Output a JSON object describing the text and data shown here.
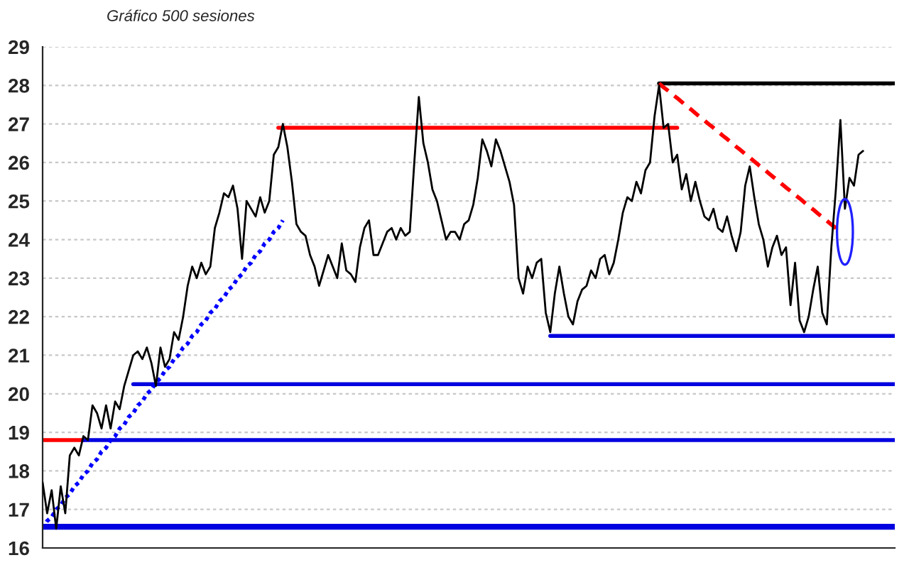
{
  "chart_data": {
    "type": "line",
    "title": "Gráfico 500 sesiones",
    "categories": [
      null,
      null,
      null,
      null,
      null,
      null,
      null,
      null,
      null,
      null,
      null,
      null,
      null,
      null,
      null,
      null,
      null,
      null,
      null,
      null,
      null,
      null,
      null,
      null,
      null,
      null,
      null,
      null,
      null,
      null,
      null,
      null,
      null,
      null,
      null,
      null,
      null,
      null,
      null,
      null,
      null,
      null,
      null,
      null,
      null,
      null,
      null,
      null,
      null,
      null,
      null,
      null,
      null,
      null,
      null,
      null,
      null,
      null,
      null,
      null,
      null,
      null,
      null,
      null,
      null,
      null,
      null,
      null,
      null,
      null,
      null,
      null,
      null,
      null,
      null,
      null,
      null,
      null,
      null,
      null,
      null,
      null,
      null,
      null,
      null,
      null,
      null,
      null,
      null,
      null,
      null,
      null,
      null,
      null,
      null,
      null,
      null,
      null,
      null,
      null,
      null,
      null,
      null,
      null,
      null,
      null,
      null,
      null,
      null,
      null,
      null,
      null,
      null,
      null,
      null,
      null,
      null,
      null,
      null,
      null,
      null,
      null,
      null,
      null,
      null,
      null,
      null,
      null,
      null,
      null,
      null,
      null,
      null,
      null,
      null,
      null,
      null,
      null,
      null,
      null,
      null,
      null,
      null,
      null,
      null,
      null,
      null,
      null,
      null,
      null,
      null,
      null,
      null,
      null,
      null,
      null,
      null,
      null,
      null,
      null,
      null,
      null,
      null,
      null,
      null,
      null,
      null,
      null,
      null,
      null,
      null,
      null,
      null,
      null,
      null,
      null,
      null,
      null,
      null,
      null,
      null,
      null,
      null,
      null,
      null,
      null,
      null,
      null,
      null
    ],
    "series": [
      {
        "color": "#000000",
        "values": [
          17.7,
          16.9,
          17.5,
          16.5,
          17.6,
          16.9,
          18.4,
          18.6,
          18.4,
          18.9,
          18.8,
          19.7,
          19.5,
          19.1,
          19.7,
          19.1,
          19.8,
          19.6,
          20.2,
          20.6,
          21.0,
          21.1,
          20.9,
          21.2,
          20.8,
          20.2,
          21.2,
          20.7,
          20.9,
          21.6,
          21.4,
          22.0,
          22.8,
          23.3,
          23.0,
          23.4,
          23.1,
          23.3,
          24.3,
          24.7,
          25.2,
          25.1,
          25.4,
          24.8,
          23.5,
          25.0,
          24.8,
          24.6,
          25.1,
          24.7,
          25.0,
          26.2,
          26.4,
          27.0,
          26.4,
          25.5,
          24.4,
          24.2,
          24.1,
          23.6,
          23.3,
          22.8,
          23.2,
          23.6,
          23.3,
          23.0,
          23.9,
          23.2,
          23.1,
          22.9,
          23.8,
          24.3,
          24.5,
          23.6,
          23.6,
          23.9,
          24.2,
          24.3,
          24.0,
          24.3,
          24.1,
          24.2,
          26.0,
          27.7,
          26.5,
          26.0,
          25.3,
          25.0,
          24.5,
          24.0,
          24.2,
          24.2,
          24.0,
          24.4,
          24.5,
          24.9,
          25.6,
          26.6,
          26.3,
          25.9,
          26.6,
          26.3,
          25.9,
          25.5,
          24.9,
          23.0,
          22.6,
          23.3,
          23.0,
          23.4,
          23.5,
          22.1,
          21.6,
          22.6,
          23.3,
          22.6,
          22.0,
          21.8,
          22.4,
          22.7,
          22.8,
          23.2,
          23.0,
          23.5,
          23.6,
          23.1,
          23.4,
          24.0,
          24.7,
          25.1,
          25.0,
          25.5,
          25.2,
          25.8,
          26.0,
          27.2,
          28.0,
          26.9,
          27.0,
          26.0,
          26.2,
          25.3,
          25.7,
          25.0,
          25.5,
          25.0,
          24.6,
          24.5,
          24.8,
          24.3,
          24.2,
          24.6,
          24.1,
          23.7,
          24.2,
          25.4,
          25.9,
          25.1,
          24.4,
          24.0,
          23.3,
          23.8,
          24.1,
          23.6,
          23.8,
          22.3,
          23.4,
          21.9,
          21.6,
          22.0,
          22.7,
          23.3,
          22.1,
          21.8,
          23.8,
          25.3,
          27.1,
          24.8,
          25.6,
          25.4,
          26.2,
          26.3,
          null,
          null,
          null,
          null,
          null,
          null,
          null
        ]
      },
      {
        "color": "#ff0000",
        "line_style": "solid",
        "values": [
          null,
          null,
          null,
          null,
          null,
          null,
          null,
          null,
          null,
          null,
          null,
          null,
          null,
          null,
          null,
          null,
          null,
          null,
          null,
          null,
          null,
          null,
          null,
          null,
          null,
          null,
          null,
          null,
          null,
          null,
          null,
          null,
          null,
          null,
          null,
          null,
          null,
          null,
          null,
          null,
          null,
          null,
          null,
          null,
          null,
          null,
          null,
          null,
          null,
          null,
          null,
          null,
          26.9,
          26.9,
          26.9,
          26.9,
          26.9,
          26.9,
          26.9,
          26.9,
          26.9,
          26.9,
          26.9,
          26.9,
          26.9,
          26.9,
          26.9,
          26.9,
          26.9,
          26.9,
          26.9,
          26.9,
          26.9,
          26.9,
          26.9,
          26.9,
          26.9,
          26.9,
          26.9,
          26.9,
          26.9,
          26.9,
          26.9,
          26.9,
          26.9,
          26.9,
          26.9,
          26.9,
          26.9,
          26.9,
          26.9,
          26.9,
          26.9,
          26.9,
          26.9,
          26.9,
          26.9,
          26.9,
          26.9,
          26.9,
          26.9,
          26.9,
          26.9,
          26.9,
          26.9,
          26.9,
          26.9,
          26.9,
          26.9,
          26.9,
          26.9,
          26.9,
          26.9,
          26.9,
          26.9,
          26.9,
          26.9,
          26.9,
          26.9,
          26.9,
          26.9,
          26.9,
          26.9,
          26.9,
          26.9,
          26.9,
          26.9,
          26.9,
          26.9,
          26.9,
          26.9,
          26.9,
          26.9,
          26.9,
          26.9,
          26.9,
          26.9,
          26.9,
          26.9,
          26.9,
          26.9,
          null,
          null,
          null,
          null,
          null,
          null,
          null,
          null,
          null,
          null,
          null,
          null,
          null,
          null,
          null,
          null,
          null,
          null,
          null,
          null,
          null,
          null,
          null,
          null,
          null,
          null,
          null,
          null,
          null,
          null,
          null,
          null,
          null,
          null,
          null,
          null,
          null,
          null,
          null,
          null,
          null,
          null,
          null,
          null,
          null,
          null,
          null,
          null
        ]
      },
      {
        "color": "#000000",
        "line_style": "solid",
        "values": [
          null,
          null,
          null,
          null,
          null,
          null,
          null,
          null,
          null,
          null,
          null,
          null,
          null,
          null,
          null,
          null,
          null,
          null,
          null,
          null,
          null,
          null,
          null,
          null,
          null,
          null,
          null,
          null,
          null,
          null,
          null,
          null,
          null,
          null,
          null,
          null,
          null,
          null,
          null,
          null,
          null,
          null,
          null,
          null,
          null,
          null,
          null,
          null,
          null,
          null,
          null,
          null,
          null,
          null,
          null,
          null,
          null,
          null,
          null,
          null,
          null,
          null,
          null,
          null,
          null,
          null,
          null,
          null,
          null,
          null,
          null,
          null,
          null,
          null,
          null,
          null,
          null,
          null,
          null,
          null,
          null,
          null,
          null,
          null,
          null,
          null,
          null,
          null,
          null,
          null,
          null,
          null,
          null,
          null,
          null,
          null,
          null,
          null,
          null,
          null,
          null,
          null,
          null,
          null,
          null,
          null,
          null,
          null,
          null,
          null,
          null,
          null,
          null,
          null,
          null,
          null,
          null,
          null,
          null,
          null,
          null,
          null,
          null,
          null,
          null,
          null,
          null,
          null,
          null,
          null,
          null,
          null,
          null,
          null,
          null,
          null,
          28.05,
          28.05,
          28.05,
          28.05,
          28.05,
          28.05,
          28.05,
          28.05,
          28.05,
          28.05,
          28.05,
          28.05,
          28.05,
          28.05,
          28.05,
          28.05,
          28.05,
          28.05,
          28.05,
          28.05,
          28.05,
          28.05,
          28.05,
          28.05,
          28.05,
          28.05,
          28.05,
          28.05,
          28.05,
          28.05,
          28.05,
          28.05,
          28.05,
          28.05,
          28.05,
          28.05,
          28.05,
          28.05,
          28.05,
          28.05,
          28.05,
          28.05,
          28.05,
          28.05,
          28.05,
          28.05,
          28.05,
          28.05,
          28.05,
          28.05,
          28.05,
          28.05,
          28.05
        ]
      },
      {
        "color": "#0000e0",
        "line_style": "solid",
        "values": [
          null,
          null,
          null,
          null,
          null,
          null,
          null,
          null,
          null,
          null,
          null,
          null,
          null,
          null,
          null,
          null,
          null,
          null,
          null,
          null,
          null,
          null,
          null,
          null,
          null,
          null,
          null,
          null,
          null,
          null,
          null,
          null,
          null,
          null,
          null,
          null,
          null,
          null,
          null,
          null,
          null,
          null,
          null,
          null,
          null,
          null,
          null,
          null,
          null,
          null,
          null,
          null,
          null,
          null,
          null,
          null,
          null,
          null,
          null,
          null,
          null,
          null,
          null,
          null,
          null,
          null,
          null,
          null,
          null,
          null,
          null,
          null,
          null,
          null,
          null,
          null,
          null,
          null,
          null,
          null,
          null,
          null,
          null,
          null,
          null,
          null,
          null,
          null,
          null,
          null,
          null,
          null,
          null,
          null,
          null,
          null,
          null,
          null,
          null,
          null,
          null,
          null,
          null,
          null,
          null,
          null,
          null,
          null,
          null,
          null,
          null,
          null,
          21.5,
          21.5,
          21.5,
          21.5,
          21.5,
          21.5,
          21.5,
          21.5,
          21.5,
          21.5,
          21.5,
          21.5,
          21.5,
          21.5,
          21.5,
          21.5,
          21.5,
          21.5,
          21.5,
          21.5,
          21.5,
          21.5,
          21.5,
          21.5,
          21.5,
          21.5,
          21.5,
          21.5,
          21.5,
          21.5,
          21.5,
          21.5,
          21.5,
          21.5,
          21.5,
          21.5,
          21.5,
          21.5,
          21.5,
          21.5,
          21.5,
          21.5,
          21.5,
          21.5,
          21.5,
          21.5,
          21.5,
          21.5,
          21.5,
          21.5,
          21.5,
          21.5,
          21.5,
          21.5,
          21.5,
          21.5,
          21.5,
          21.5,
          21.5,
          21.5,
          21.5,
          21.5,
          21.5,
          21.5,
          21.5,
          21.5,
          21.5,
          21.5,
          21.5,
          21.5,
          21.5,
          21.5,
          21.5,
          21.5,
          21.5,
          21.5,
          21.5
        ]
      },
      {
        "color": "#0000e0",
        "line_style": "solid",
        "values": [
          null,
          null,
          null,
          null,
          null,
          null,
          null,
          null,
          null,
          null,
          null,
          null,
          null,
          null,
          null,
          null,
          null,
          null,
          null,
          null,
          20.25,
          20.25,
          20.25,
          20.25,
          20.25,
          20.25,
          20.25,
          20.25,
          20.25,
          20.25,
          20.25,
          20.25,
          20.25,
          20.25,
          20.25,
          20.25,
          20.25,
          20.25,
          20.25,
          20.25,
          20.25,
          20.25,
          20.25,
          20.25,
          20.25,
          20.25,
          20.25,
          20.25,
          20.25,
          20.25,
          20.25,
          20.25,
          20.25,
          20.25,
          20.25,
          20.25,
          20.25,
          20.25,
          20.25,
          20.25,
          20.25,
          20.25,
          20.25,
          20.25,
          20.25,
          20.25,
          20.25,
          20.25,
          20.25,
          20.25,
          20.25,
          20.25,
          20.25,
          20.25,
          20.25,
          20.25,
          20.25,
          20.25,
          20.25,
          20.25,
          20.25,
          20.25,
          20.25,
          20.25,
          20.25,
          20.25,
          20.25,
          20.25,
          20.25,
          20.25,
          20.25,
          20.25,
          20.25,
          20.25,
          20.25,
          20.25,
          20.25,
          20.25,
          20.25,
          20.25,
          20.25,
          20.25,
          20.25,
          20.25,
          20.25,
          20.25,
          20.25,
          20.25,
          20.25,
          20.25,
          20.25,
          20.25,
          20.25,
          20.25,
          20.25,
          20.25,
          20.25,
          20.25,
          20.25,
          20.25,
          20.25,
          20.25,
          20.25,
          20.25,
          20.25,
          20.25,
          20.25,
          20.25,
          20.25,
          20.25,
          20.25,
          20.25,
          20.25,
          20.25,
          20.25,
          20.25,
          20.25,
          20.25,
          20.25,
          20.25,
          20.25,
          20.25,
          20.25,
          20.25,
          20.25,
          20.25,
          20.25,
          20.25,
          20.25,
          20.25,
          20.25,
          20.25,
          20.25,
          20.25,
          20.25,
          20.25,
          20.25,
          20.25,
          20.25,
          20.25,
          20.25,
          20.25,
          20.25,
          20.25,
          20.25,
          20.25,
          20.25,
          20.25,
          20.25,
          20.25,
          20.25,
          20.25,
          20.25,
          20.25,
          20.25,
          20.25,
          20.25,
          20.25,
          20.25,
          20.25,
          20.25,
          20.25,
          20.25,
          20.25,
          20.25,
          20.25,
          20.25,
          20.25,
          20.25
        ]
      },
      {
        "color": "#ff0000",
        "line_style": "solid",
        "values": [
          18.8,
          18.8,
          18.8,
          18.8,
          18.8,
          18.8,
          18.8,
          18.8,
          18.8,
          18.8,
          null,
          null,
          null,
          null,
          null,
          null,
          null,
          null,
          null,
          null,
          null,
          null,
          null,
          null,
          null,
          null,
          null,
          null,
          null,
          null,
          null,
          null,
          null,
          null,
          null,
          null,
          null,
          null,
          null,
          null,
          null,
          null,
          null,
          null,
          null,
          null,
          null,
          null,
          null,
          null,
          null,
          null,
          null,
          null,
          null,
          null,
          null,
          null,
          null,
          null,
          null,
          null,
          null,
          null,
          null,
          null,
          null,
          null,
          null,
          null,
          null,
          null,
          null,
          null,
          null,
          null,
          null,
          null,
          null,
          null,
          null,
          null,
          null,
          null,
          null,
          null,
          null,
          null,
          null,
          null,
          null,
          null,
          null,
          null,
          null,
          null,
          null,
          null,
          null,
          null,
          null,
          null,
          null,
          null,
          null,
          null,
          null,
          null,
          null,
          null,
          null,
          null,
          null,
          null,
          null,
          null,
          null,
          null,
          null,
          null,
          null,
          null,
          null,
          null,
          null,
          null,
          null,
          null,
          null,
          null,
          null,
          null,
          null,
          null,
          null,
          null,
          null,
          null,
          null,
          null,
          null,
          null,
          null,
          null,
          null,
          null,
          null,
          null,
          null,
          null,
          null,
          null,
          null,
          null,
          null,
          null,
          null,
          null,
          null,
          null,
          null,
          null,
          null,
          null,
          null,
          null,
          null,
          null,
          null,
          null,
          null,
          null,
          null,
          null,
          null,
          null,
          null,
          null,
          null,
          null,
          null,
          null,
          null,
          null,
          null,
          null,
          null,
          null,
          null
        ]
      },
      {
        "color": "#0000e0",
        "line_style": "solid",
        "values": [
          null,
          null,
          null,
          null,
          null,
          null,
          null,
          null,
          null,
          18.8,
          18.8,
          18.8,
          18.8,
          18.8,
          18.8,
          18.8,
          18.8,
          18.8,
          18.8,
          18.8,
          18.8,
          18.8,
          18.8,
          18.8,
          18.8,
          18.8,
          18.8,
          18.8,
          18.8,
          18.8,
          18.8,
          18.8,
          18.8,
          18.8,
          18.8,
          18.8,
          18.8,
          18.8,
          18.8,
          18.8,
          18.8,
          18.8,
          18.8,
          18.8,
          18.8,
          18.8,
          18.8,
          18.8,
          18.8,
          18.8,
          18.8,
          18.8,
          18.8,
          18.8,
          18.8,
          18.8,
          18.8,
          18.8,
          18.8,
          18.8,
          18.8,
          18.8,
          18.8,
          18.8,
          18.8,
          18.8,
          18.8,
          18.8,
          18.8,
          18.8,
          18.8,
          18.8,
          18.8,
          18.8,
          18.8,
          18.8,
          18.8,
          18.8,
          18.8,
          18.8,
          18.8,
          18.8,
          18.8,
          18.8,
          18.8,
          18.8,
          18.8,
          18.8,
          18.8,
          18.8,
          18.8,
          18.8,
          18.8,
          18.8,
          18.8,
          18.8,
          18.8,
          18.8,
          18.8,
          18.8,
          18.8,
          18.8,
          18.8,
          18.8,
          18.8,
          18.8,
          18.8,
          18.8,
          18.8,
          18.8,
          18.8,
          18.8,
          18.8,
          18.8,
          18.8,
          18.8,
          18.8,
          18.8,
          18.8,
          18.8,
          18.8,
          18.8,
          18.8,
          18.8,
          18.8,
          18.8,
          18.8,
          18.8,
          18.8,
          18.8,
          18.8,
          18.8,
          18.8,
          18.8,
          18.8,
          18.8,
          18.8,
          18.8,
          18.8,
          18.8,
          18.8,
          18.8,
          18.8,
          18.8,
          18.8,
          18.8,
          18.8,
          18.8,
          18.8,
          18.8,
          18.8,
          18.8,
          18.8,
          18.8,
          18.8,
          18.8,
          18.8,
          18.8,
          18.8,
          18.8,
          18.8,
          18.8,
          18.8,
          18.8,
          18.8,
          18.8,
          18.8,
          18.8,
          18.8,
          18.8,
          18.8,
          18.8,
          18.8,
          18.8,
          18.8,
          18.8,
          18.8,
          18.8,
          18.8,
          18.8,
          18.8,
          18.8,
          18.8,
          18.8,
          18.8,
          18.8,
          18.8,
          18.8,
          18.8
        ]
      },
      {
        "color": "#0000ff",
        "line_style": "dotted",
        "values": [
          16.5,
          16.7,
          16.8,
          17.0,
          17.1,
          17.3,
          17.4,
          17.6,
          17.7,
          17.9,
          18.0,
          18.2,
          18.3,
          18.5,
          18.6,
          18.8,
          18.9,
          19.1,
          19.2,
          19.4,
          19.5,
          19.7,
          19.8,
          20.0,
          20.1,
          20.3,
          20.4,
          20.6,
          20.7,
          20.9,
          21.0,
          21.2,
          21.3,
          21.5,
          21.6,
          21.8,
          21.9,
          22.1,
          22.2,
          22.4,
          22.5,
          22.7,
          22.8,
          23.0,
          23.1,
          23.3,
          23.4,
          23.6,
          23.7,
          23.9,
          24.0,
          24.2,
          24.3,
          24.5,
          null,
          null,
          null,
          null,
          null,
          null,
          null,
          null,
          null,
          null,
          null,
          null,
          null,
          null,
          null,
          null,
          null,
          null,
          null,
          null,
          null,
          null,
          null,
          null,
          null,
          null,
          null,
          null,
          null,
          null,
          null,
          null,
          null,
          null,
          null,
          null,
          null,
          null,
          null,
          null,
          null,
          null,
          null,
          null,
          null,
          null,
          null,
          null,
          null,
          null,
          null,
          null,
          null,
          null,
          null,
          null,
          null,
          null,
          null,
          null,
          null,
          null,
          null,
          null,
          null,
          null,
          null,
          null,
          null,
          null,
          null,
          null,
          null,
          null,
          null,
          null,
          null,
          null,
          null,
          null,
          null,
          null,
          null,
          null,
          null,
          null,
          null,
          null,
          null,
          null,
          null,
          null,
          null,
          null,
          null,
          null,
          null,
          null,
          null,
          null,
          null,
          null,
          null,
          null,
          null,
          null,
          null,
          null,
          null,
          null,
          null,
          null,
          null,
          null,
          null,
          null,
          null,
          null,
          null,
          null,
          null,
          null,
          null,
          null,
          null,
          null,
          null,
          null,
          null,
          null,
          null,
          null,
          null,
          null,
          null
        ]
      },
      {
        "color": "#ff0000",
        "line_style": "dashed",
        "values": [
          null,
          null,
          null,
          null,
          null,
          null,
          null,
          null,
          null,
          null,
          null,
          null,
          null,
          null,
          null,
          null,
          null,
          null,
          null,
          null,
          null,
          null,
          null,
          null,
          null,
          null,
          null,
          null,
          null,
          null,
          null,
          null,
          null,
          null,
          null,
          null,
          null,
          null,
          null,
          null,
          null,
          null,
          null,
          null,
          null,
          null,
          null,
          null,
          null,
          null,
          null,
          null,
          null,
          null,
          null,
          null,
          null,
          null,
          null,
          null,
          null,
          null,
          null,
          null,
          null,
          null,
          null,
          null,
          null,
          null,
          null,
          null,
          null,
          null,
          null,
          null,
          null,
          null,
          null,
          null,
          null,
          null,
          null,
          null,
          null,
          null,
          null,
          null,
          null,
          null,
          null,
          null,
          null,
          null,
          null,
          null,
          null,
          null,
          null,
          null,
          null,
          null,
          null,
          null,
          null,
          null,
          null,
          null,
          null,
          null,
          null,
          null,
          null,
          null,
          null,
          null,
          null,
          null,
          null,
          null,
          null,
          null,
          null,
          null,
          null,
          null,
          null,
          null,
          null,
          null,
          null,
          null,
          null,
          null,
          null,
          null,
          28.05,
          27.95,
          27.86,
          27.76,
          27.67,
          27.57,
          27.47,
          27.38,
          27.28,
          27.18,
          27.09,
          26.99,
          26.9,
          26.8,
          26.7,
          26.61,
          26.51,
          26.41,
          26.32,
          26.22,
          26.13,
          26.03,
          25.93,
          25.84,
          25.74,
          25.64,
          25.55,
          25.45,
          25.35,
          25.26,
          25.16,
          25.07,
          24.97,
          24.87,
          24.78,
          24.68,
          24.58,
          24.49,
          24.39,
          24.3,
          24.2,
          null,
          null,
          null,
          null,
          null,
          null,
          null,
          null,
          null,
          null,
          null,
          null
        ]
      }
    ],
    "ref_lines": [
      {
        "axis": "y",
        "value": 16.55,
        "color": "#0000e0",
        "line_style": "solid"
      }
    ],
    "ylim": [
      16,
      29
    ],
    "yticks": [
      16,
      17,
      18,
      19,
      20,
      21,
      22,
      23,
      24,
      25,
      26,
      27,
      28,
      29
    ],
    "grid": "y",
    "tick_labels": "y"
  }
}
